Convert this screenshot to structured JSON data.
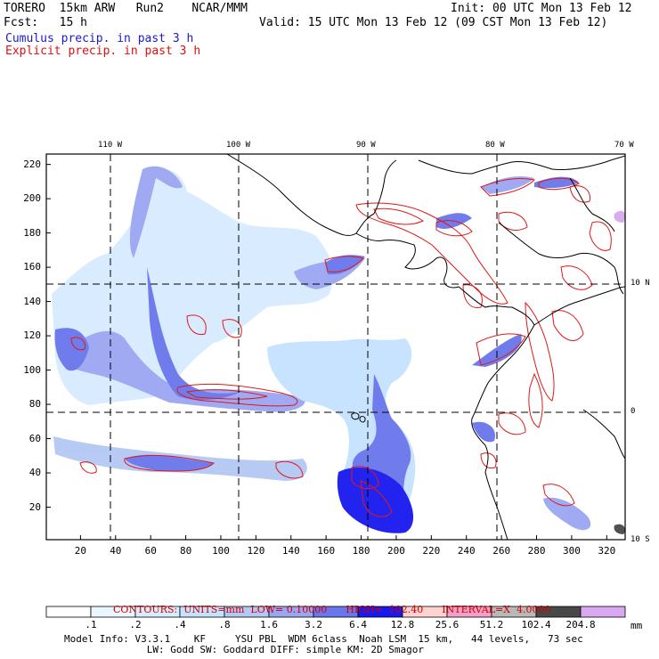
{
  "header": {
    "model": "TORERO  15km ARW   Run2    NCAR/MMM",
    "init": "Init: 00 UTC Mon 13 Feb 12",
    "fcst": "Fcst:   15 h",
    "valid": "Valid: 15 UTC Mon 13 Feb 12 (09 CST Mon 13 Feb 12)",
    "cumulus": "Cumulus precip. in past 3 h",
    "explicit": "Explicit precip. in past 3 h"
  },
  "axes": {
    "x_ticks": [
      "20",
      "40",
      "60",
      "80",
      "100",
      "120",
      "140",
      "160",
      "180",
      "200",
      "220",
      "240",
      "260",
      "280",
      "300",
      "320"
    ],
    "y_ticks": [
      "20",
      "40",
      "60",
      "80",
      "100",
      "120",
      "140",
      "160",
      "180",
      "200",
      "220"
    ],
    "lon_labels": [
      "110 W",
      "100 W",
      "90 W",
      "80 W",
      "70 W"
    ],
    "lat_labels": [
      "10 N",
      "0",
      "10 S"
    ]
  },
  "contour_line": {
    "title": "CONTOURS:",
    "units": "UNITS=mm",
    "low": "LOW= 0.10000",
    "high": "HIGH=  102.40",
    "interval": "INTERVAL=X  4.0000"
  },
  "legend": {
    "unit": "mm",
    "bins": [
      {
        "label": ".1",
        "color": "#ffffff"
      },
      {
        "label": ".2",
        "color": "#e8f6ff"
      },
      {
        "label": ".4",
        "color": "#d8ecff"
      },
      {
        "label": ".8",
        "color": "#c6e2ff"
      },
      {
        "label": "1.6",
        "color": "#b4c8f4"
      },
      {
        "label": "3.2",
        "color": "#9aa6f2"
      },
      {
        "label": "6.4",
        "color": "#6a76ec"
      },
      {
        "label": "12.8",
        "color": "#1818f0"
      },
      {
        "label": "25.6",
        "color": "#ffd2d2"
      },
      {
        "label": "51.2",
        "color": "#f4a0c8"
      },
      {
        "label": "102.4",
        "color": "#b8b8b8"
      },
      {
        "label": "204.8",
        "color": "#484848"
      },
      {
        "label": "",
        "color": "#d8a8f0"
      }
    ]
  },
  "footer": {
    "line1": "Model Info: V3.3.1    KF     YSU PBL  WDM 6class  Noah LSM  15 km,   44 levels,   73 sec",
    "line2": "              LW: Godd SW: Goddard DIFF: simple KM: 2D Smagor"
  }
}
